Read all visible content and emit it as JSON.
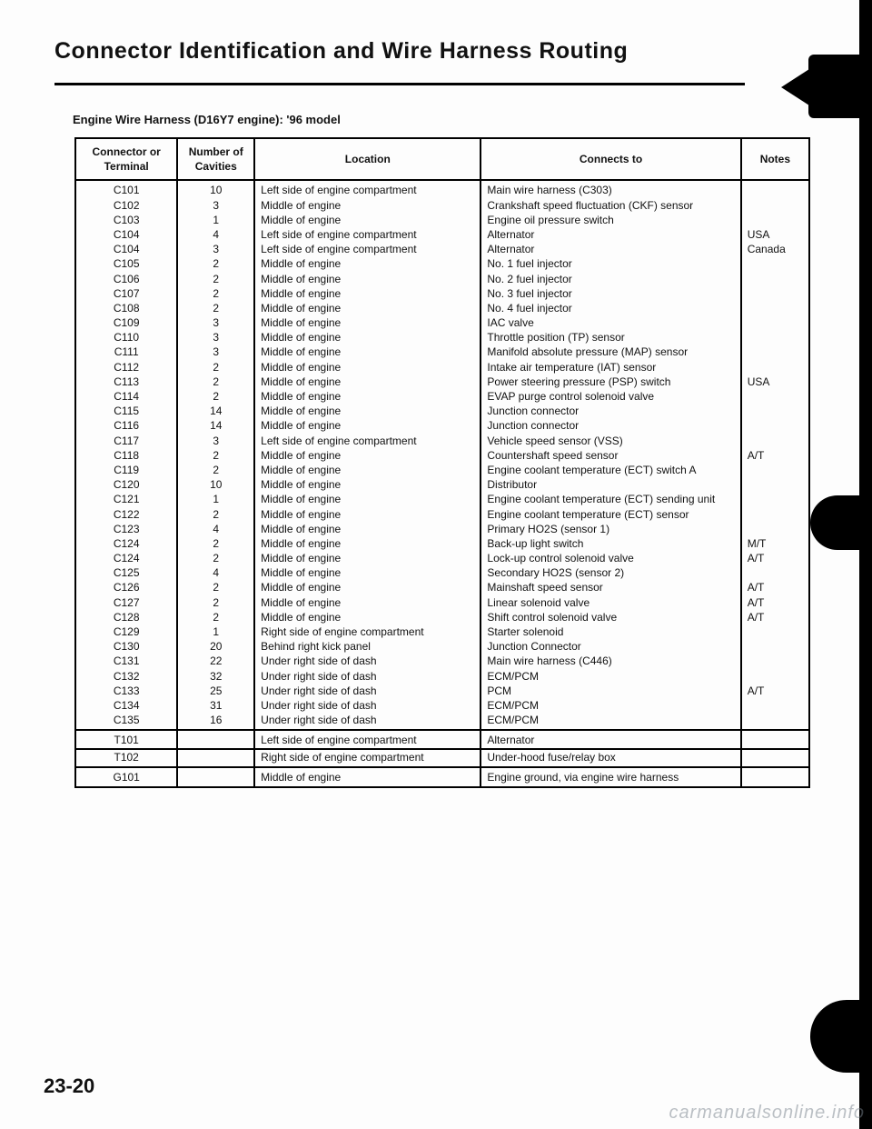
{
  "title": "Connector Identification and Wire Harness Routing",
  "subtitle": "Engine Wire Harness (D16Y7 engine): '96 model",
  "page_number": "23-20",
  "watermark": "carmanualsonline.info",
  "headers": {
    "c1": "Connector or Terminal",
    "c2": "Number of Cavities",
    "c3": "Location",
    "c4": "Connects to",
    "c5": "Notes"
  },
  "sections": [
    {
      "rows": [
        {
          "c1": "C101",
          "c2": "10",
          "c3": "Left side of engine compartment",
          "c4": "Main wire harness (C303)",
          "c5": ""
        },
        {
          "c1": "C102",
          "c2": "3",
          "c3": "Middle of engine",
          "c4": "Crankshaft speed fluctuation (CKF) sensor",
          "c5": ""
        },
        {
          "c1": "C103",
          "c2": "1",
          "c3": "Middle of engine",
          "c4": "Engine oil pressure switch",
          "c5": ""
        },
        {
          "c1": "C104",
          "c2": "4",
          "c3": "Left side of engine compartment",
          "c4": "Alternator",
          "c5": "USA"
        },
        {
          "c1": "C104",
          "c2": "3",
          "c3": "Left side of engine compartment",
          "c4": "Alternator",
          "c5": "Canada"
        },
        {
          "c1": "C105",
          "c2": "2",
          "c3": "Middle of engine",
          "c4": "No. 1 fuel injector",
          "c5": ""
        },
        {
          "c1": "C106",
          "c2": "2",
          "c3": "Middle of engine",
          "c4": "No. 2 fuel injector",
          "c5": ""
        },
        {
          "c1": "C107",
          "c2": "2",
          "c3": "Middle of engine",
          "c4": "No. 3 fuel injector",
          "c5": ""
        },
        {
          "c1": "C108",
          "c2": "2",
          "c3": "Middle of engine",
          "c4": "No. 4 fuel injector",
          "c5": ""
        },
        {
          "c1": "C109",
          "c2": "3",
          "c3": "Middle of engine",
          "c4": "IAC valve",
          "c5": ""
        },
        {
          "c1": "C110",
          "c2": "3",
          "c3": "Middle of engine",
          "c4": "Throttle position (TP) sensor",
          "c5": ""
        },
        {
          "c1": "C111",
          "c2": "3",
          "c3": "Middle of engine",
          "c4": "Manifold absolute pressure (MAP) sensor",
          "c5": ""
        },
        {
          "c1": "C112",
          "c2": "2",
          "c3": "Middle of engine",
          "c4": "Intake air temperature (IAT) sensor",
          "c5": ""
        },
        {
          "c1": "C113",
          "c2": "2",
          "c3": "Middle of engine",
          "c4": "Power steering pressure (PSP) switch",
          "c5": "USA"
        },
        {
          "c1": "C114",
          "c2": "2",
          "c3": "Middle of engine",
          "c4": "EVAP purge control solenoid valve",
          "c5": ""
        },
        {
          "c1": "C115",
          "c2": "14",
          "c3": "Middle of engine",
          "c4": "Junction connector",
          "c5": ""
        },
        {
          "c1": "C116",
          "c2": "14",
          "c3": "Middle of engine",
          "c4": "Junction connector",
          "c5": ""
        },
        {
          "c1": "C117",
          "c2": "3",
          "c3": "Left side of engine compartment",
          "c4": "Vehicle speed sensor (VSS)",
          "c5": ""
        },
        {
          "c1": "C118",
          "c2": "2",
          "c3": "Middle of engine",
          "c4": "Countershaft speed sensor",
          "c5": "A/T"
        },
        {
          "c1": "C119",
          "c2": "2",
          "c3": "Middle of engine",
          "c4": "Engine coolant temperature (ECT) switch A",
          "c5": ""
        },
        {
          "c1": "C120",
          "c2": "10",
          "c3": "Middle of engine",
          "c4": "Distributor",
          "c5": ""
        },
        {
          "c1": "C121",
          "c2": "1",
          "c3": "Middle of engine",
          "c4": "Engine coolant temperature (ECT) sending unit",
          "c5": ""
        },
        {
          "c1": "C122",
          "c2": "2",
          "c3": "Middle of engine",
          "c4": "Engine coolant temperature (ECT) sensor",
          "c5": ""
        },
        {
          "c1": "C123",
          "c2": "4",
          "c3": "Middle of engine",
          "c4": "Primary HO2S (sensor 1)",
          "c5": ""
        },
        {
          "c1": "C124",
          "c2": "2",
          "c3": "Middle of engine",
          "c4": "Back-up light switch",
          "c5": "M/T"
        },
        {
          "c1": "C124",
          "c2": "2",
          "c3": "Middle of engine",
          "c4": "Lock-up control solenoid valve",
          "c5": "A/T"
        },
        {
          "c1": "C125",
          "c2": "4",
          "c3": "Middle of engine",
          "c4": "Secondary HO2S (sensor 2)",
          "c5": ""
        },
        {
          "c1": "C126",
          "c2": "2",
          "c3": "Middle of engine",
          "c4": "Mainshaft speed sensor",
          "c5": "A/T"
        },
        {
          "c1": "C127",
          "c2": "2",
          "c3": "Middle of engine",
          "c4": "Linear solenoid valve",
          "c5": "A/T"
        },
        {
          "c1": "C128",
          "c2": "2",
          "c3": "Middle of engine",
          "c4": "Shift control solenoid valve",
          "c5": "A/T"
        },
        {
          "c1": "C129",
          "c2": "1",
          "c3": "Right side of engine compartment",
          "c4": "Starter solenoid",
          "c5": ""
        },
        {
          "c1": "C130",
          "c2": "20",
          "c3": "Behind right kick panel",
          "c4": "Junction Connector",
          "c5": ""
        },
        {
          "c1": "C131",
          "c2": "22",
          "c3": "Under right side of dash",
          "c4": "Main wire harness (C446)",
          "c5": ""
        },
        {
          "c1": "C132",
          "c2": "32",
          "c3": "Under right side of dash",
          "c4": "ECM/PCM",
          "c5": ""
        },
        {
          "c1": "C133",
          "c2": "25",
          "c3": "Under right side of dash",
          "c4": "PCM",
          "c5": "A/T"
        },
        {
          "c1": "C134",
          "c2": "31",
          "c3": "Under right side of dash",
          "c4": "ECM/PCM",
          "c5": ""
        },
        {
          "c1": "C135",
          "c2": "16",
          "c3": "Under right side of dash",
          "c4": "ECM/PCM",
          "c5": ""
        }
      ]
    },
    {
      "rows": [
        {
          "c1": "T101",
          "c2": "",
          "c3": "Left side of engine compartment",
          "c4": "Alternator",
          "c5": ""
        },
        {
          "c1": "T102",
          "c2": "",
          "c3": "Right side of engine compartment",
          "c4": "Under-hood fuse/relay box",
          "c5": ""
        }
      ]
    },
    {
      "rows": [
        {
          "c1": "G101",
          "c2": "",
          "c3": "Middle of engine",
          "c4": "Engine ground, via engine wire harness",
          "c5": ""
        }
      ]
    }
  ]
}
